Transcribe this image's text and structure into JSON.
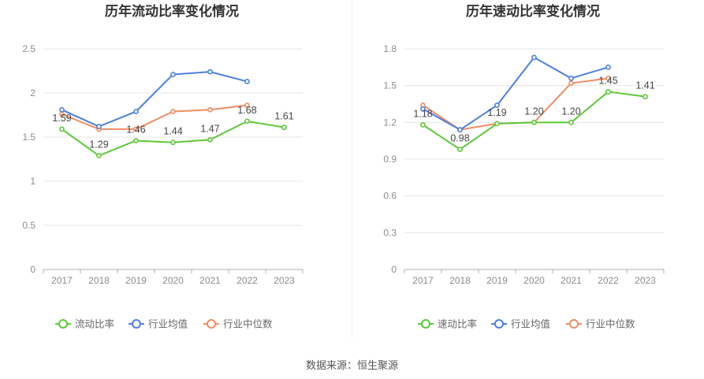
{
  "source_text": "数据来源：恒生聚源",
  "chart_data": [
    {
      "type": "line",
      "title": "历年流动比率变化情况",
      "categories": [
        "2017",
        "2018",
        "2019",
        "2020",
        "2021",
        "2022",
        "2023"
      ],
      "ylim": [
        0,
        2.5
      ],
      "yticks": [
        0,
        0.5,
        1,
        1.5,
        2,
        2.5
      ],
      "ytick_labels": [
        "0",
        "0.5",
        "1",
        "1.5",
        "2",
        "2.5"
      ],
      "grid": true,
      "legend_position": "bottom",
      "series": [
        {
          "name": "流动比率",
          "color": "#5cc936",
          "values": [
            1.59,
            1.29,
            1.46,
            1.44,
            1.47,
            1.68,
            1.61
          ],
          "labeled": true
        },
        {
          "name": "行业均值",
          "color": "#4c7fe0",
          "values": [
            1.81,
            1.62,
            1.79,
            2.21,
            2.24,
            2.13,
            null
          ],
          "labeled": false
        },
        {
          "name": "行业中位数",
          "color": "#f28c63",
          "values": [
            1.76,
            1.59,
            1.59,
            1.79,
            1.81,
            1.86,
            null
          ],
          "labeled": false
        }
      ]
    },
    {
      "type": "line",
      "title": "历年速动比率变化情况",
      "categories": [
        "2017",
        "2018",
        "2019",
        "2020",
        "2021",
        "2022",
        "2023"
      ],
      "ylim": [
        0,
        1.8
      ],
      "yticks": [
        0,
        0.3,
        0.6,
        0.9,
        1.2,
        1.5,
        1.8
      ],
      "ytick_labels": [
        "0",
        "0.3",
        "0.6",
        "0.9",
        "1.2",
        "1.5",
        "1.8"
      ],
      "grid": true,
      "legend_position": "bottom",
      "series": [
        {
          "name": "速动比率",
          "color": "#5cc936",
          "values": [
            1.18,
            0.98,
            1.19,
            1.2,
            1.2,
            1.45,
            1.41
          ],
          "labeled": true
        },
        {
          "name": "行业均值",
          "color": "#4c7fe0",
          "values": [
            1.31,
            1.14,
            1.34,
            1.73,
            1.56,
            1.65,
            null
          ],
          "labeled": false
        },
        {
          "name": "行业中位数",
          "color": "#f28c63",
          "values": [
            1.34,
            1.14,
            1.19,
            1.2,
            1.52,
            1.56,
            null
          ],
          "labeled": false
        }
      ]
    }
  ]
}
